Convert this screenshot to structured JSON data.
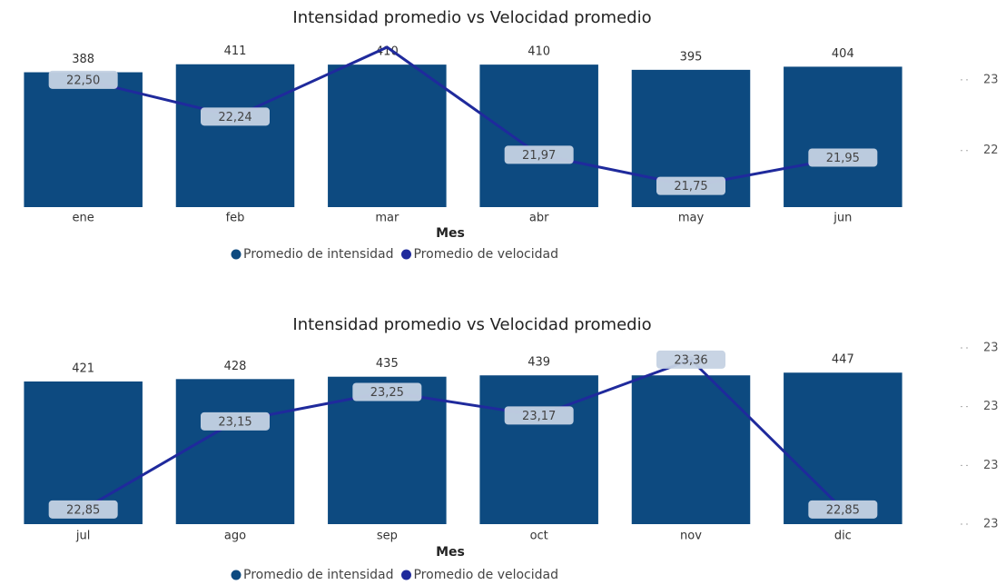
{
  "chart_data": [
    {
      "type": "bar+line",
      "title": "Intensidad promedio vs Velocidad promedio",
      "x_label": "Mes",
      "categories": [
        "ene",
        "feb",
        "mar",
        "abr",
        "may",
        "jun"
      ],
      "series": [
        {
          "name": "Promedio de intensidad",
          "type": "bar",
          "color": "#0d4a80",
          "values": [
            388,
            411,
            410,
            410,
            395,
            404
          ]
        },
        {
          "name": "Promedio de velocidad",
          "type": "line",
          "axis": "y2",
          "color": "#1f2a9c",
          "values": [
            22.5,
            22.24,
            22.73,
            21.97,
            21.75,
            21.95
          ],
          "value_labels": [
            "22,50",
            "22,24",
            null,
            "21,97",
            "21,75",
            "21,95"
          ]
        }
      ],
      "ylim": [
        0,
        460
      ],
      "y2lim": [
        21.6,
        22.73
      ],
      "y2ticks": [
        {
          "value": 22.5,
          "label": "23"
        },
        {
          "value": 22,
          "label": "22"
        }
      ]
    },
    {
      "type": "bar+line",
      "title": "Intensidad promedio vs Velocidad promedio",
      "x_label": "Mes",
      "categories": [
        "jul",
        "ago",
        "sep",
        "oct",
        "nov",
        "dic"
      ],
      "series": [
        {
          "name": "Promedio de intensidad",
          "type": "bar",
          "color": "#0d4a80",
          "values": [
            421,
            428,
            435,
            439,
            439,
            447
          ]
        },
        {
          "name": "Promedio de velocidad",
          "type": "line",
          "axis": "y2",
          "color": "#1f2a9c",
          "values": [
            22.85,
            23.15,
            23.25,
            23.17,
            23.36,
            22.85
          ],
          "value_labels": [
            "22,85",
            "23,15",
            "23,25",
            "23,17",
            "23,36",
            "22,85"
          ]
        }
      ],
      "ylim": [
        0,
        520
      ],
      "y2lim": [
        22.8,
        23.4
      ],
      "y2ticks": [
        {
          "value": 23.4,
          "label": "23"
        },
        {
          "value": 23.2,
          "label": "23"
        },
        {
          "value": 23.0,
          "label": "23"
        },
        {
          "value": 22.8,
          "label": "23"
        }
      ]
    }
  ]
}
